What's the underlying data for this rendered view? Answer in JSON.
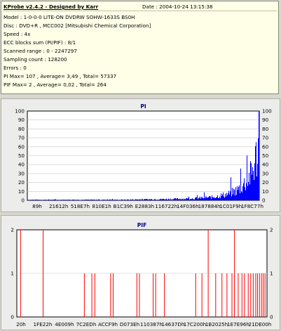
{
  "info": {
    "title": "KProbe v2.4.2 - Designed by Karr",
    "date": "Date : 2004-10-24 13:15:38",
    "lines": [
      "Model : 1-0-0-0 LITE-ON DVDRW SOHW-1633S BS0H",
      "Disc : DVD+R , MCC002 [Mitsubishi Chemical Corporation]",
      "Speed : 4x",
      "ECC blocks sum (PI/PIF) : 8/1",
      "Scanned range : 0 - 2247297",
      "Sampling count : 128200",
      "Errors : 0",
      "PI Max= 107 , Average= 3,49 , Total= 57337",
      "PIF Max= 2 , Average= 0,02 , Total= 264"
    ]
  },
  "chart_data": [
    {
      "type": "bar",
      "title": "PI",
      "bar_color": "#0000ff",
      "ylim": [
        0,
        105
      ],
      "yticks": [
        "0",
        "10",
        "20",
        "30",
        "40",
        "50",
        "60",
        "70",
        "80",
        "90",
        "100"
      ],
      "xticks": [
        "89h",
        "21612h",
        "518E7h",
        "810E1h",
        "B1C39h",
        "E2883h",
        "116722h",
        "14F036h",
        "187884h",
        "1C01F9h",
        "1F8C77h"
      ],
      "x_end": "22B5C1h",
      "envelope": [
        [
          0,
          1
        ],
        [
          0.4,
          1
        ],
        [
          0.55,
          2
        ],
        [
          0.7,
          3
        ],
        [
          0.8,
          6
        ],
        [
          0.87,
          12
        ],
        [
          0.91,
          20
        ],
        [
          0.94,
          33
        ],
        [
          0.965,
          48
        ],
        [
          0.98,
          65
        ],
        [
          0.99,
          85
        ],
        [
          1.0,
          107
        ]
      ]
    },
    {
      "type": "bar",
      "title": "PIF",
      "bar_color": "#ff0000",
      "ylim": [
        0,
        2
      ],
      "yticks": [
        "0",
        "1",
        "2"
      ],
      "xticks": [
        "20h",
        "1FE22h",
        "4E009h",
        "7C2EDh",
        "ACCF9h",
        "D073Eh",
        "110387h",
        "14637Dh",
        "17C200h",
        "1B2025h",
        "1E7E96h",
        "21DE00h"
      ],
      "spikes": [
        [
          0.015,
          2
        ],
        [
          0.105,
          2
        ],
        [
          0.27,
          1
        ],
        [
          0.3,
          1
        ],
        [
          0.312,
          1
        ],
        [
          0.375,
          1
        ],
        [
          0.385,
          1
        ],
        [
          0.48,
          1
        ],
        [
          0.49,
          1
        ],
        [
          0.545,
          1
        ],
        [
          0.555,
          1
        ],
        [
          0.59,
          1
        ],
        [
          0.715,
          1
        ],
        [
          0.74,
          1
        ],
        [
          0.765,
          2
        ],
        [
          0.795,
          1
        ],
        [
          0.82,
          1
        ],
        [
          0.84,
          1
        ],
        [
          0.86,
          1
        ],
        [
          0.87,
          2
        ],
        [
          0.885,
          1
        ],
        [
          0.9,
          1
        ],
        [
          0.91,
          1
        ],
        [
          0.925,
          1
        ],
        [
          0.935,
          1
        ],
        [
          0.945,
          1
        ],
        [
          0.955,
          1
        ],
        [
          0.962,
          1
        ],
        [
          0.97,
          1
        ],
        [
          0.978,
          1
        ],
        [
          0.985,
          1
        ],
        [
          0.992,
          1
        ]
      ]
    }
  ]
}
